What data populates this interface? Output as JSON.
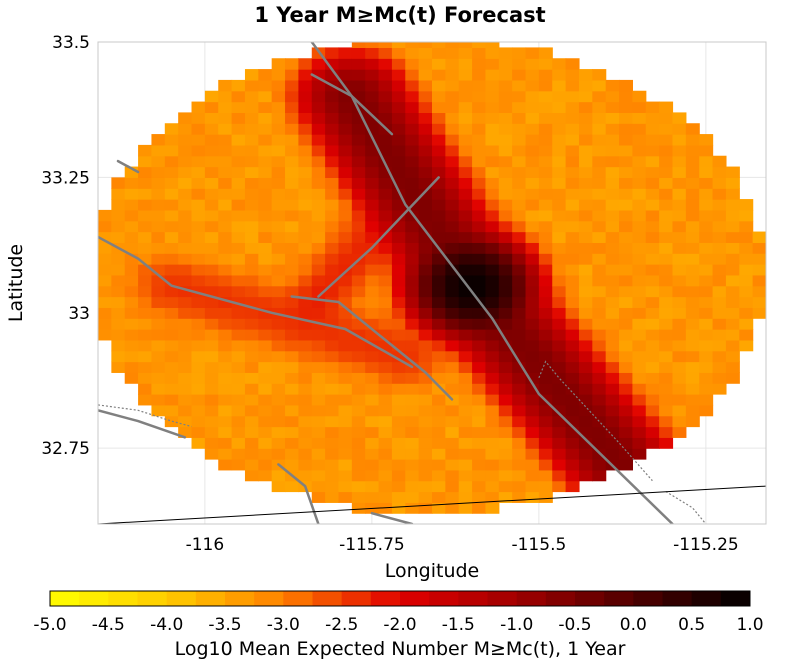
{
  "chart_data": {
    "type": "heatmap",
    "title": "1 Year M≥Mc(t) Forecast",
    "xlabel": "Longitude",
    "ylabel": "Latitude",
    "xlim": [
      -116.16,
      -115.16
    ],
    "ylim": [
      32.61,
      33.5
    ],
    "x_ticks": [
      {
        "value": -116,
        "label": "-116"
      },
      {
        "value": -115.75,
        "label": "-115.75"
      },
      {
        "value": -115.5,
        "label": "-115.5"
      },
      {
        "value": -115.25,
        "label": "-115.25"
      }
    ],
    "y_ticks": [
      {
        "value": 33.5,
        "label": "33.5"
      },
      {
        "value": 33.25,
        "label": "33.25"
      },
      {
        "value": 33,
        "label": "33"
      },
      {
        "value": 32.75,
        "label": "32.75"
      }
    ],
    "grid": true,
    "grid_cell_deg": 0.02,
    "region": {
      "center": [
        -115.665,
        33.07
      ],
      "radius_lon": 0.505,
      "radius_lat": 0.44
    },
    "field": {
      "background_level": -3.3,
      "peak": {
        "lon": -115.6,
        "lat": 33.05,
        "value": 0.9
      },
      "peak_sigma_deg": 0.03,
      "ridge": {
        "points": [
          [
            -115.78,
            33.4
          ],
          [
            -115.6,
            33.05
          ],
          [
            -115.35,
            32.68
          ]
        ],
        "max_level": -0.6,
        "sigma_deg": 0.03
      },
      "secondary": [
        {
          "points": [
            [
              -116.05,
              33.05
            ],
            [
              -115.85,
              32.98
            ],
            [
              -115.7,
              32.92
            ]
          ],
          "max_level": -2.4,
          "sigma_deg": 0.03
        },
        {
          "points": [
            [
              -115.83,
              33.03
            ],
            [
              -115.69,
              33.22
            ]
          ],
          "max_level": -2.3,
          "sigma_deg": 0.025
        }
      ]
    },
    "faults": [
      [
        [
          -115.84,
          33.5
        ],
        [
          -115.78,
          33.4
        ],
        [
          -115.72,
          33.33
        ]
      ],
      [
        [
          -115.84,
          33.44
        ],
        [
          -115.78,
          33.4
        ],
        [
          -115.7,
          33.2
        ],
        [
          -115.57,
          32.99
        ],
        [
          -115.5,
          32.85
        ],
        [
          -115.35,
          32.67
        ],
        [
          -115.3,
          32.61
        ]
      ],
      [
        [
          -116.16,
          33.14
        ],
        [
          -116.1,
          33.1
        ],
        [
          -116.05,
          33.05
        ],
        [
          -115.9,
          33.0
        ],
        [
          -115.79,
          32.97
        ],
        [
          -115.69,
          32.9
        ]
      ],
      [
        [
          -115.87,
          33.03
        ],
        [
          -115.8,
          33.02
        ],
        [
          -115.73,
          32.95
        ],
        [
          -115.67,
          32.89
        ],
        [
          -115.63,
          32.84
        ]
      ],
      [
        [
          -115.83,
          33.03
        ],
        [
          -115.75,
          33.12
        ],
        [
          -115.65,
          33.25
        ]
      ],
      [
        [
          -116.16,
          32.82
        ],
        [
          -116.1,
          32.8
        ],
        [
          -116.03,
          32.77
        ]
      ],
      [
        [
          -115.89,
          32.72
        ],
        [
          -115.85,
          32.68
        ],
        [
          -115.83,
          32.61
        ]
      ],
      [
        [
          -115.75,
          32.63
        ],
        [
          -115.69,
          32.61
        ]
      ],
      [
        [
          -116.13,
          33.28
        ],
        [
          -116.1,
          33.26
        ]
      ]
    ],
    "dotted_faults": [
      [
        [
          -116.16,
          32.83
        ],
        [
          -116.1,
          32.82
        ],
        [
          -116.05,
          32.8
        ],
        [
          -116.02,
          32.79
        ]
      ],
      [
        [
          -115.5,
          32.88
        ],
        [
          -115.49,
          32.91
        ],
        [
          -115.47,
          32.88
        ],
        [
          -115.38,
          32.76
        ],
        [
          -115.33,
          32.69
        ]
      ],
      [
        [
          -115.31,
          32.67
        ],
        [
          -115.27,
          32.64
        ],
        [
          -115.25,
          32.61
        ]
      ]
    ],
    "border_line": [
      [
        -116.16,
        32.61
      ],
      [
        -115.16,
        32.68
      ]
    ],
    "colorbar": {
      "label": "Log10 Mean Expected Number M≥Mc(t), 1 Year",
      "min": -5.0,
      "max": 1.0,
      "step": 0.25,
      "tick_labels": [
        "-5.0",
        "-4.5",
        "-4.0",
        "-3.5",
        "-3.0",
        "-2.5",
        "-2.0",
        "-1.5",
        "-1.0",
        "-0.5",
        "0.0",
        "0.5",
        "1.0"
      ],
      "stops": [
        {
          "value": -5.0,
          "color": "#ffff00"
        },
        {
          "value": -4.0,
          "color": "#ffcc00"
        },
        {
          "value": -3.0,
          "color": "#ff8000"
        },
        {
          "value": -2.0,
          "color": "#e00000"
        },
        {
          "value": -1.0,
          "color": "#a00000"
        },
        {
          "value": 0.0,
          "color": "#500000"
        },
        {
          "value": 1.0,
          "color": "#000000"
        }
      ]
    },
    "colors": {
      "fault": "#808080",
      "border": "#000000",
      "grid": "#e6e6e6"
    }
  }
}
